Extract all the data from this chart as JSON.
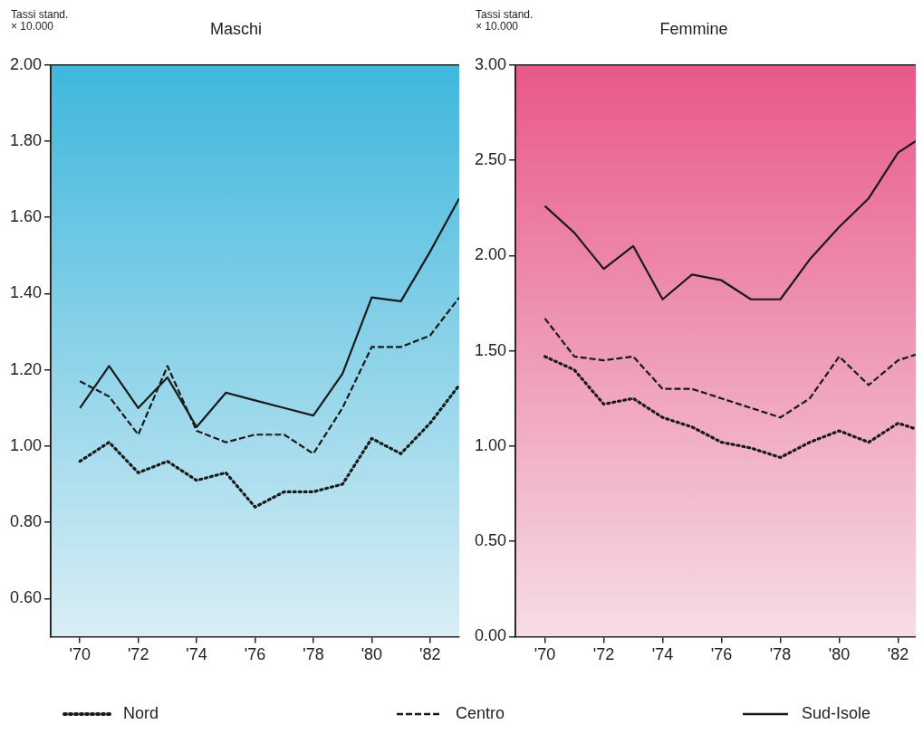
{
  "chart_data": [
    {
      "type": "line",
      "title": "Maschi",
      "ylabel": "Tassi stand.\n× 10.000",
      "xlim": [
        69,
        83
      ],
      "xticks": [
        {
          "value": 70,
          "label": "'70"
        },
        {
          "value": 72,
          "label": "'72"
        },
        {
          "value": 74,
          "label": "'74"
        },
        {
          "value": 76,
          "label": "'76"
        },
        {
          "value": 78,
          "label": "'78"
        },
        {
          "value": 80,
          "label": "'80"
        },
        {
          "value": 82,
          "label": "'82"
        }
      ],
      "ylim": [
        0.5,
        2.0
      ],
      "yticks": [
        {
          "value": 0.6,
          "label": "0.60"
        },
        {
          "value": 0.8,
          "label": "0.80"
        },
        {
          "value": 1.0,
          "label": "1.00"
        },
        {
          "value": 1.2,
          "label": "1.20"
        },
        {
          "value": 1.4,
          "label": "1.40"
        },
        {
          "value": 1.6,
          "label": "1.60"
        },
        {
          "value": 1.8,
          "label": "1.80"
        },
        {
          "value": 2.0,
          "label": "2.00"
        }
      ],
      "grid": false,
      "legend": "bottom",
      "marker": "none",
      "x": [
        70,
        71,
        72,
        73,
        74,
        75,
        76,
        77,
        78,
        79,
        80,
        81,
        82,
        83
      ],
      "series": [
        {
          "name": "Nord",
          "color": "#1a1a1a",
          "line_style": "dotted",
          "values": [
            0.96,
            1.01,
            0.93,
            0.96,
            0.91,
            0.93,
            0.84,
            0.88,
            0.88,
            0.9,
            1.02,
            0.98,
            1.06,
            1.16
          ]
        },
        {
          "name": "Centro",
          "color": "#1a1a1a",
          "line_style": "dashed",
          "values": [
            1.17,
            1.13,
            1.03,
            1.21,
            1.04,
            1.01,
            1.03,
            1.03,
            0.98,
            1.1,
            1.26,
            1.26,
            1.29,
            1.39
          ]
        },
        {
          "name": "Sud-Isole",
          "color": "#1a1a1a",
          "line_style": "solid",
          "values": [
            1.1,
            1.21,
            1.1,
            1.18,
            1.05,
            1.14,
            1.12,
            1.1,
            1.08,
            1.19,
            1.39,
            1.38,
            1.51,
            1.65
          ]
        }
      ]
    },
    {
      "type": "line",
      "title": "Femmine",
      "ylabel": "Tassi stand.\n× 10.000",
      "xlim": [
        69,
        82.6
      ],
      "xticks": [
        {
          "value": 70,
          "label": "'70"
        },
        {
          "value": 72,
          "label": "'72"
        },
        {
          "value": 74,
          "label": "'74"
        },
        {
          "value": 76,
          "label": "'76"
        },
        {
          "value": 78,
          "label": "'78"
        },
        {
          "value": 80,
          "label": "'80"
        },
        {
          "value": 82,
          "label": "'82"
        }
      ],
      "ylim": [
        0,
        3
      ],
      "yticks": [
        {
          "value": 0,
          "label": "0.00"
        },
        {
          "value": 0.5,
          "label": "0.50"
        },
        {
          "value": 1.0,
          "label": "1.00"
        },
        {
          "value": 1.5,
          "label": "1.50"
        },
        {
          "value": 2.0,
          "label": "2.00"
        },
        {
          "value": 2.5,
          "label": "2.50"
        },
        {
          "value": 3.0,
          "label": "3.00"
        }
      ],
      "grid": false,
      "legend": "bottom",
      "marker": "none",
      "x": [
        70,
        71,
        72,
        73,
        74,
        75,
        76,
        77,
        78,
        79,
        80,
        81,
        82,
        82.6
      ],
      "series": [
        {
          "name": "Nord",
          "color": "#1a1a1a",
          "line_style": "dotted",
          "values": [
            1.47,
            1.4,
            1.22,
            1.25,
            1.15,
            1.1,
            1.02,
            0.99,
            0.94,
            1.02,
            1.08,
            1.02,
            1.12,
            1.09
          ]
        },
        {
          "name": "Centro",
          "color": "#1a1a1a",
          "line_style": "dashed",
          "values": [
            1.67,
            1.47,
            1.45,
            1.47,
            1.3,
            1.3,
            1.25,
            1.2,
            1.15,
            1.25,
            1.47,
            1.32,
            1.45,
            1.48
          ]
        },
        {
          "name": "Sud-Isole",
          "color": "#1a1a1a",
          "line_style": "solid",
          "values": [
            2.26,
            2.12,
            1.93,
            2.05,
            1.77,
            1.9,
            1.87,
            1.77,
            1.77,
            1.98,
            2.15,
            2.3,
            2.54,
            2.6
          ]
        }
      ]
    }
  ]
}
